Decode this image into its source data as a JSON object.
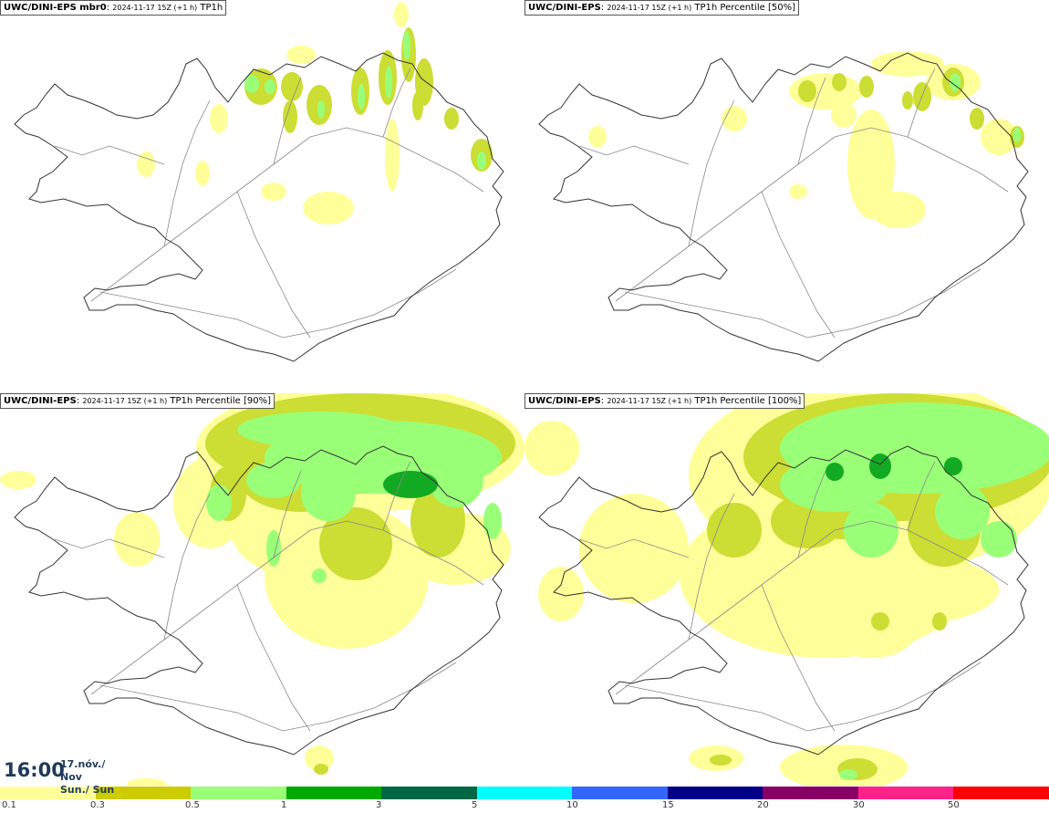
{
  "panels": [
    {
      "source": "UWC/DINI-EPS mbr0",
      "run": "2024-11-17 15Z (+1 h)",
      "field": "TP1h",
      "intensity": 1
    },
    {
      "source": "UWC/DINI-EPS",
      "run": "2024-11-17 15Z (+1 h)",
      "field": "TP1h Percentile [50%]",
      "intensity": 0
    },
    {
      "source": "UWC/DINI-EPS",
      "run": "2024-11-17 15Z (+1 h)",
      "field": "TP1h Percentile [90%]",
      "intensity": 2
    },
    {
      "source": "UWC/DINI-EPS",
      "run": "2024-11-17 15Z (+1 h)",
      "field": "TP1h Percentile [100%]",
      "intensity": 3
    }
  ],
  "time": {
    "clock": "16:00",
    "date_line1": "17.nóv./ Nov",
    "date_line2": "Sun./ Sun"
  },
  "legend": {
    "colors": [
      "#ffff99",
      "#cccc00",
      "#99ff77",
      "#00aa00",
      "#006644",
      "#00ffff",
      "#3366ff",
      "#000088",
      "#880066",
      "#ff2288",
      "#ff0000"
    ],
    "labels": [
      "0.1",
      "0.3",
      "0.5",
      "1",
      "3",
      "5",
      "10",
      "15",
      "20",
      "30",
      "50"
    ]
  }
}
